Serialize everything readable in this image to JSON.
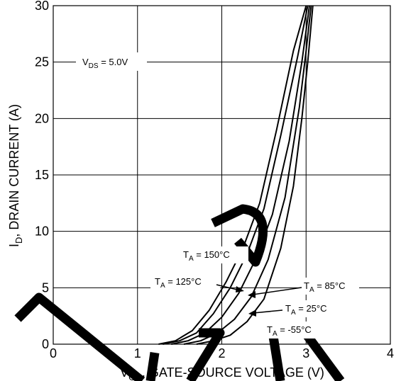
{
  "chart_data": {
    "type": "line",
    "xlabel_main": "V",
    "xlabel_sub": "GS",
    "xlabel_rest": ", GATE-SOURCE VOLTAGE (V)",
    "ylabel_main": "I",
    "ylabel_sub": "D",
    "ylabel_rest": ", DRAIN CURRENT (A)",
    "xlim": [
      0,
      4
    ],
    "ylim": [
      0,
      30
    ],
    "x_ticks": [
      0,
      1,
      2,
      3,
      4
    ],
    "y_ticks": [
      0,
      5,
      10,
      15,
      20,
      25,
      30
    ],
    "grid": true,
    "condition": {
      "main": "V",
      "sub": "DS",
      "rest": " = 5.0V"
    },
    "series": [
      {
        "name": "T_A = 150°C",
        "label_main": "T",
        "label_sub": "A",
        "label_rest": " = 150°C",
        "x": [
          1.25,
          1.45,
          1.65,
          1.85,
          2.05,
          2.25,
          2.45,
          2.65,
          2.85,
          3.0
        ],
        "y": [
          0,
          0.3,
          1.2,
          3.0,
          5.5,
          8.5,
          12.5,
          19,
          26,
          30
        ]
      },
      {
        "name": "T_A = 125°C",
        "label_main": "T",
        "label_sub": "A",
        "label_rest": " = 125°C",
        "x": [
          1.3,
          1.5,
          1.7,
          1.9,
          2.1,
          2.3,
          2.5,
          2.7,
          2.9,
          3.02
        ],
        "y": [
          0,
          0.3,
          1.0,
          2.7,
          5.0,
          8.0,
          12,
          18.5,
          25.5,
          30
        ]
      },
      {
        "name": "T_A = 85°C",
        "label_main": "T",
        "label_sub": "A",
        "label_rest": " = 85°C",
        "x": [
          1.4,
          1.6,
          1.8,
          2.0,
          2.2,
          2.4,
          2.6,
          2.8,
          2.95,
          3.04
        ],
        "y": [
          0,
          0.3,
          1.0,
          2.4,
          4.5,
          7.5,
          11.5,
          18,
          25,
          30
        ]
      },
      {
        "name": "T_A = 25°C",
        "label_main": "T",
        "label_sub": "A",
        "label_rest": " = 25°C",
        "x": [
          1.55,
          1.75,
          1.95,
          2.15,
          2.35,
          2.55,
          2.75,
          2.92,
          3.0,
          3.06
        ],
        "y": [
          0,
          0.3,
          1.0,
          2.2,
          4.2,
          7.5,
          13,
          21,
          26,
          30
        ]
      },
      {
        "name": "T_A = -55°C",
        "label_main": "T",
        "label_sub": "A",
        "label_rest": " = -55°C",
        "x": [
          1.7,
          1.9,
          2.1,
          2.3,
          2.5,
          2.7,
          2.85,
          2.95,
          3.02,
          3.08
        ],
        "y": [
          0,
          0.3,
          0.8,
          2.0,
          4.0,
          8.5,
          14,
          20,
          25,
          30
        ]
      }
    ]
  }
}
